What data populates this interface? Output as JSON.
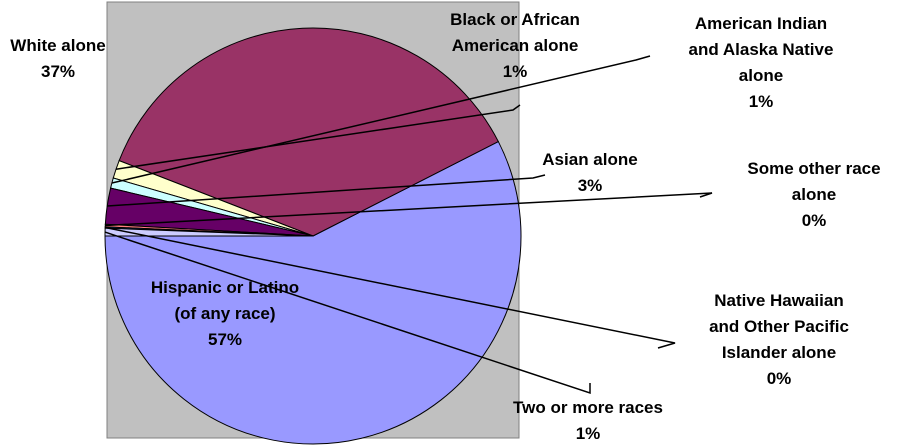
{
  "chart_data": {
    "type": "pie",
    "slices": [
      {
        "label": "Hispanic or Latino (of any race)",
        "lines": [
          "Hispanic or Latino",
          "(of any race)"
        ],
        "pct_label": "57%",
        "value": 57.5,
        "color": "#9999ff"
      },
      {
        "label": "White alone",
        "lines": [
          "White alone"
        ],
        "pct_label": "37%",
        "value": 36.6,
        "color": "#993366"
      },
      {
        "label": "Black or African American alone",
        "lines": [
          "Black or African",
          "American alone"
        ],
        "pct_label": "1%",
        "value": 1.4,
        "color": "#ffffcc"
      },
      {
        "label": "American Indian and Alaska Native alone",
        "lines": [
          "American Indian",
          "and Alaska Native",
          "alone"
        ],
        "pct_label": "1%",
        "value": 0.8,
        "color": "#ccffff"
      },
      {
        "label": "Asian alone",
        "lines": [
          "Asian alone"
        ],
        "pct_label": "3%",
        "value": 2.8,
        "color": "#660066"
      },
      {
        "label": "Some other race alone",
        "lines": [
          "Some other race",
          "alone"
        ],
        "pct_label": "0%",
        "value": 0.2,
        "color": "#ff8080"
      },
      {
        "label": "Native Hawaiian and Other Pacific Islander alone",
        "lines": [
          "Native Hawaiian",
          "and Other Pacific",
          "Islander alone"
        ],
        "pct_label": "0%",
        "value": 0.1,
        "color": "#0066cc"
      },
      {
        "label": "Two or more races",
        "lines": [
          "Two or more races"
        ],
        "pct_label": "1%",
        "value": 0.6,
        "color": "#ccccff"
      }
    ],
    "plot_background": "#c0c0c0",
    "title": "",
    "legend": "none"
  }
}
